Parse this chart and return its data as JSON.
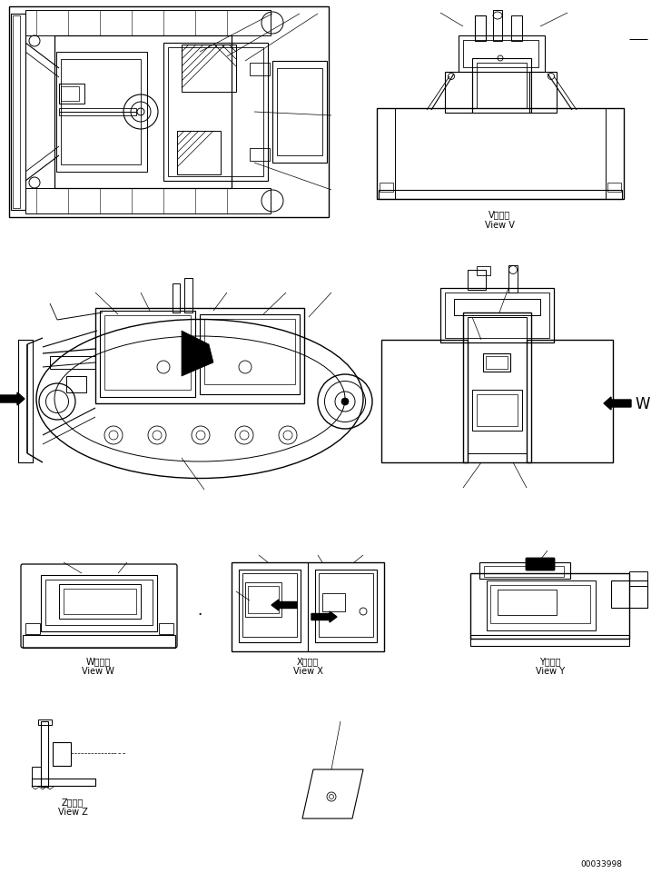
{
  "bg_color": "#ffffff",
  "line_color": "#000000",
  "fig_width": 7.39,
  "fig_height": 9.62,
  "dpi": 100,
  "serial_number": "00033998",
  "label_V_jp": "V　　視",
  "label_V_en": "View V",
  "label_W_jp": "W　　視",
  "label_W_en": "View W",
  "label_X_jp": "X　　視",
  "label_X_en": "View X",
  "label_Y_jp": "Y　　視",
  "label_Y_en": "View Y",
  "label_Z_jp": "Z　　視",
  "label_Z_en": "View Z"
}
